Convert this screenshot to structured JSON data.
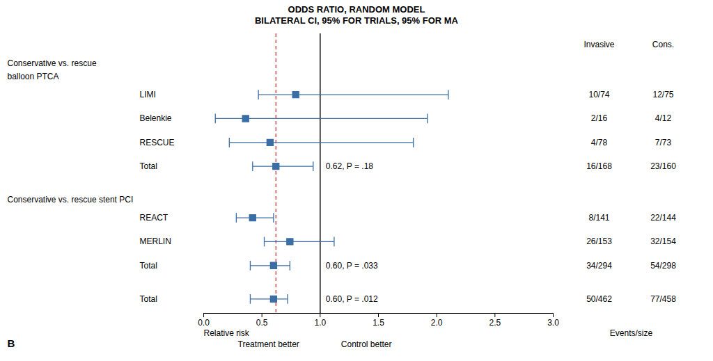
{
  "chart_data": {
    "type": "forest",
    "title": "ODDS RATIO, RANDOM MODEL",
    "subtitle": "BILATERAL CI, 95% FOR TRIALS, 95% FOR MA",
    "xlabel": "Relative risk",
    "left_label": "Treatment better",
    "right_label": "Control better",
    "column_labels": [
      "Invasive",
      "Cons."
    ],
    "column_caption": "Events/size",
    "panel_label": "B",
    "color": "#3a6ea5",
    "xlim": [
      0.0,
      3.0
    ],
    "xticks": [
      {
        "value": 0,
        "label": "0.0"
      },
      0.5,
      {
        "value": 1,
        "label": "1.0"
      },
      1.5,
      {
        "value": 2,
        "label": "2.0"
      },
      2.5,
      {
        "value": 3,
        "label": "3.0"
      }
    ],
    "reference_lines": [
      {
        "value": 1.0,
        "color": "#111111",
        "line_style": "solid"
      },
      {
        "value": 0.62,
        "color": "#cc2222",
        "line_style": "dashed"
      }
    ],
    "groups": [
      {
        "header": [
          "Conservative vs. rescue",
          "balloon PTCA"
        ],
        "studies": [
          {
            "label": "LIMI",
            "estimate": 0.79,
            "ci_low": 0.47,
            "ci_high": 2.1,
            "events": [
              "10/74",
              "12/75"
            ]
          },
          {
            "label": "Belenkie",
            "estimate": 0.36,
            "ci_low": 0.1,
            "ci_high": 1.92,
            "events": [
              "2/16",
              "4/12"
            ]
          },
          {
            "label": "RESCUE",
            "estimate": 0.57,
            "ci_low": 0.22,
            "ci_high": 1.8,
            "events": [
              "4/78",
              "7/73"
            ]
          },
          {
            "label": "Total",
            "estimate": 0.62,
            "ci_low": 0.42,
            "ci_high": 0.94,
            "events": [
              "16/168",
              "23/160"
            ],
            "annotation": "0.62, P = .18"
          }
        ]
      },
      {
        "header": [
          "Conservative vs. rescue stent PCI"
        ],
        "studies": [
          {
            "label": "REACT",
            "estimate": 0.42,
            "ci_low": 0.28,
            "ci_high": 0.6,
            "events": [
              "8/141",
              "22/144"
            ]
          },
          {
            "label": "MERLIN",
            "estimate": 0.74,
            "ci_low": 0.52,
            "ci_high": 1.12,
            "events": [
              "26/153",
              "32/154"
            ]
          },
          {
            "label": "Total",
            "estimate": 0.6,
            "ci_low": 0.4,
            "ci_high": 0.74,
            "events": [
              "34/294",
              "54/298"
            ],
            "annotation": "0.60, P = .033"
          }
        ]
      },
      {
        "studies": [
          {
            "label": "Total",
            "estimate": 0.6,
            "ci_low": 0.4,
            "ci_high": 0.72,
            "events": [
              "50/462",
              "77/458"
            ],
            "annotation": "0.60, P = .012"
          }
        ]
      }
    ]
  }
}
